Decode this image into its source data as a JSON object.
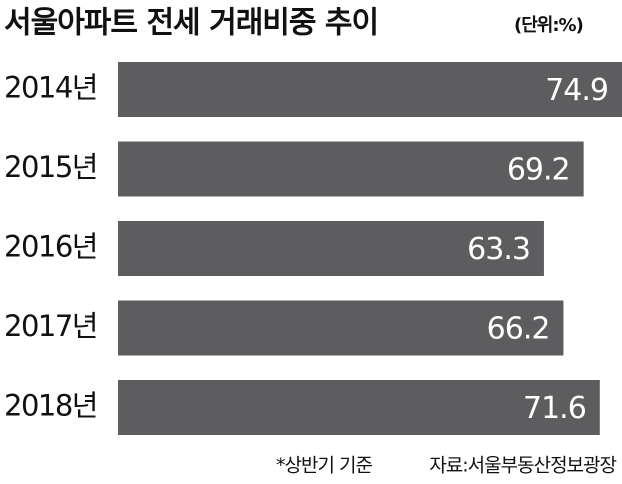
{
  "chart_data": {
    "type": "bar",
    "orientation": "horizontal",
    "title": "서울아파트 전세 거래비중 추이",
    "subtitle": "(단위:%)",
    "categories": [
      "2014년",
      "2015년",
      "2016년",
      "2017년",
      "2018년"
    ],
    "values": [
      74.9,
      69.2,
      63.3,
      66.2,
      71.6
    ],
    "color": "#5d5c5e",
    "notes": [
      "*상반기 기준",
      "자료:서울부동산정보광장"
    ]
  }
}
